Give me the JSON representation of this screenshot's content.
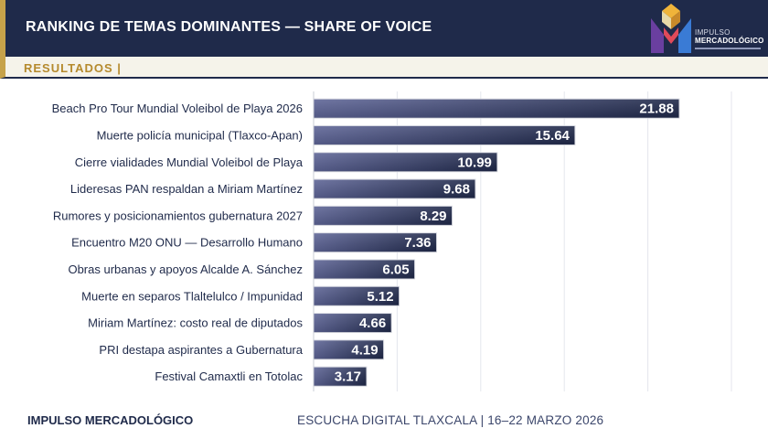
{
  "header": {
    "title": "RANKING DE TEMAS DOMINANTES — SHARE OF VOICE",
    "logo_line1": "IMPULSO",
    "logo_line2": "MERCADOLÓGICO"
  },
  "subheader": {
    "title": "RESULTADOS  |"
  },
  "footer": {
    "brand": "IMPULSO MERCADOLÓGICO",
    "event": "ESCUCHA DIGITAL TLAXCALA  |  16–22 MARZO 2026"
  },
  "colors": {
    "navy": "#1f2a4a",
    "gold": "#c6a24a",
    "bar_dark": "#1e2748",
    "bar_light": "#5d6496"
  },
  "chart_data": {
    "type": "bar",
    "orientation": "horizontal",
    "title": "",
    "xlabel": "",
    "ylabel": "",
    "xlim": [
      0,
      25
    ],
    "grid": true,
    "categories": [
      "Beach Pro Tour Mundial Voleibol de Playa 2026",
      "Muerte policía municipal (Tlaxco-Apan)",
      "Cierre vialidades Mundial Voleibol de Playa",
      "Lideresas PAN respaldan a Miriam Martínez",
      "Rumores y posicionamientos gubernatura 2027",
      "Encuentro M20 ONU — Desarrollo Humano",
      "Obras urbanas y apoyos Alcalde A. Sánchez",
      "Muerte en separos Tlaltelulco / Impunidad",
      "Miriam Martínez: costo real de diputados",
      "PRI destapa aspirantes a Gubernatura",
      "Festival Camaxtli en Totolac"
    ],
    "values": [
      21.88,
      15.64,
      10.99,
      9.68,
      8.29,
      7.36,
      6.05,
      5.12,
      4.66,
      4.19,
      3.17
    ],
    "value_labels": [
      "21.88",
      "15.64",
      "10.99",
      "9.68",
      "8.29",
      "7.36",
      "6.05",
      "5.12",
      "4.66",
      "4.19",
      "3.17"
    ]
  }
}
